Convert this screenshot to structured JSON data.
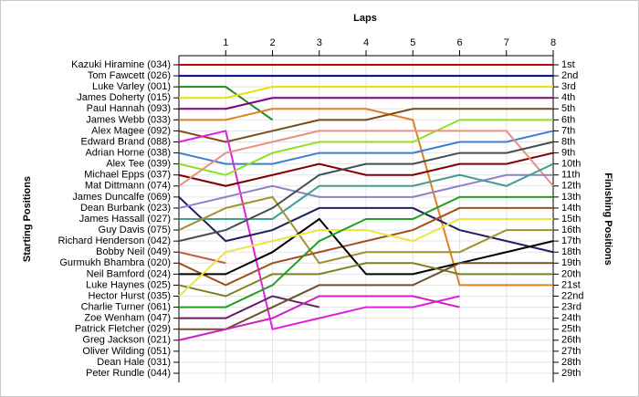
{
  "chart_data": {
    "type": "lap",
    "title": "Laps",
    "ylabel": "Starting Positions",
    "y2label": "Finishing Positions",
    "x": [
      0,
      1,
      2,
      3,
      4,
      5,
      6,
      7,
      8
    ],
    "xlim": [
      0,
      8
    ],
    "xticks": [
      1,
      2,
      3,
      4,
      5,
      6,
      7,
      8
    ],
    "ylim": [
      1,
      29
    ],
    "yticks": [
      {
        "value": 1,
        "label": "1st"
      },
      {
        "value": 2,
        "label": "2nd"
      },
      {
        "value": 3,
        "label": "3rd"
      },
      {
        "value": 4,
        "label": "4th"
      },
      {
        "value": 5,
        "label": "5th"
      },
      {
        "value": 6,
        "label": "6th"
      },
      {
        "value": 7,
        "label": "7th"
      },
      {
        "value": 8,
        "label": "8th"
      },
      {
        "value": 9,
        "label": "9th"
      },
      {
        "value": 10,
        "label": "10th"
      },
      {
        "value": 11,
        "label": "11th"
      },
      {
        "value": 12,
        "label": "12th"
      },
      {
        "value": 13,
        "label": "13th"
      },
      {
        "value": 14,
        "label": "14th"
      },
      {
        "value": 15,
        "label": "15th"
      },
      {
        "value": 16,
        "label": "16th"
      },
      {
        "value": 17,
        "label": "17th"
      },
      {
        "value": 18,
        "label": "18th"
      },
      {
        "value": 19,
        "label": "19th"
      },
      {
        "value": 20,
        "label": "20th"
      },
      {
        "value": 21,
        "label": "21st"
      },
      {
        "value": 22,
        "label": "22nd"
      },
      {
        "value": 23,
        "label": "23rd"
      },
      {
        "value": 24,
        "label": "24th"
      },
      {
        "value": 25,
        "label": "25th"
      },
      {
        "value": 26,
        "label": "26th"
      },
      {
        "value": 27,
        "label": "27th"
      },
      {
        "value": 28,
        "label": "28th"
      },
      {
        "value": 29,
        "label": "29th"
      }
    ],
    "grid": true,
    "series": [
      {
        "name": "Kazuki Hiramine (034)",
        "color": "#cc0000",
        "values": [
          1,
          1,
          1,
          1,
          1,
          1,
          1,
          1,
          1
        ]
      },
      {
        "name": "Tom Fawcett (026)",
        "color": "#000080",
        "values": [
          2,
          2,
          2,
          2,
          2,
          2,
          2,
          2,
          2
        ]
      },
      {
        "name": "Luke Varley (001)",
        "color": "#208a20",
        "values": [
          3,
          3,
          6,
          null,
          null,
          null,
          null,
          null,
          null
        ]
      },
      {
        "name": "James Doherty (015)",
        "color": "#e8e000",
        "values": [
          4,
          4,
          3,
          3,
          3,
          3,
          3,
          3,
          3
        ]
      },
      {
        "name": "Paul Hannah (093)",
        "color": "#800080",
        "values": [
          5,
          5,
          4,
          4,
          4,
          4,
          4,
          4,
          4
        ]
      },
      {
        "name": "James Webb (033)",
        "color": "#e08020",
        "values": [
          6,
          6,
          5,
          5,
          5,
          6,
          21,
          21,
          21
        ]
      },
      {
        "name": "Alex Magee (092)",
        "color": "#7a4a1a",
        "values": [
          7,
          8,
          7,
          6,
          6,
          5,
          5,
          5,
          5
        ]
      },
      {
        "name": "Edward Brand (088)",
        "color": "#e020e0",
        "values": [
          8,
          7,
          25,
          24,
          23,
          23,
          22,
          null,
          null
        ]
      },
      {
        "name": "Adrian Horne (038)",
        "color": "#3a7fd0",
        "values": [
          9,
          10,
          10,
          9,
          9,
          9,
          8,
          8,
          7
        ]
      },
      {
        "name": "Alex Tee (039)",
        "color": "#90e020",
        "values": [
          10,
          11,
          9,
          8,
          8,
          8,
          6,
          6,
          6
        ]
      },
      {
        "name": "Michael Epps (037)",
        "color": "#800000",
        "values": [
          11,
          12,
          11,
          10,
          11,
          11,
          10,
          10,
          9
        ]
      },
      {
        "name": "Mat Dittmann (074)",
        "color": "#e89080",
        "values": [
          12,
          9,
          8,
          7,
          7,
          7,
          7,
          7,
          12
        ]
      },
      {
        "name": "James Duncalfe (069)",
        "color": "#202060",
        "values": [
          13,
          17,
          16,
          14,
          14,
          14,
          16,
          17,
          18
        ]
      },
      {
        "name": "Dean Burbank (023)",
        "color": "#9080c8",
        "values": [
          14,
          13,
          12,
          13,
          13,
          13,
          12,
          11,
          11
        ]
      },
      {
        "name": "James Hassall (027)",
        "color": "#40a090",
        "values": [
          15,
          15,
          15,
          12,
          12,
          12,
          11,
          12,
          10
        ]
      },
      {
        "name": "Guy Davis (075)",
        "color": "#a09030",
        "values": [
          16,
          14,
          13,
          19,
          18,
          18,
          18,
          16,
          16
        ]
      },
      {
        "name": "Richard Henderson (042)",
        "color": "#405050",
        "values": [
          17,
          16,
          14,
          11,
          10,
          10,
          9,
          9,
          8
        ]
      },
      {
        "name": "Bobby Neil (049)",
        "color": "#c06040",
        "values": [
          18,
          19,
          null,
          null,
          null,
          null,
          null,
          null,
          null
        ]
      },
      {
        "name": "Gurmukh Bhambra (020)",
        "color": "#a05020",
        "values": [
          19,
          21,
          19,
          18,
          17,
          16,
          14,
          14,
          14
        ]
      },
      {
        "name": "Neil Bamford (024)",
        "color": "#000000",
        "values": [
          20,
          20,
          18,
          15,
          20,
          20,
          19,
          18,
          17
        ]
      },
      {
        "name": "Luke Haynes (025)",
        "color": "#808020",
        "values": [
          21,
          22,
          20,
          20,
          19,
          19,
          20,
          20,
          20
        ]
      },
      {
        "name": "Hector Hurst (035)",
        "color": "#e8e840",
        "values": [
          22,
          18,
          17,
          16,
          16,
          17,
          15,
          15,
          15
        ]
      },
      {
        "name": "Charlie Turner (061)",
        "color": "#20a020",
        "values": [
          23,
          23,
          21,
          17,
          15,
          15,
          13,
          13,
          13
        ]
      },
      {
        "name": "Zoe Wenham (047)",
        "color": "#602060",
        "values": [
          24,
          24,
          22,
          23,
          null,
          null,
          null,
          null,
          null
        ]
      },
      {
        "name": "Patrick Fletcher (029)",
        "color": "#705030",
        "values": [
          25,
          25,
          23,
          21,
          21,
          21,
          19,
          19,
          19
        ]
      },
      {
        "name": "Greg Jackson (021)",
        "color": "#d020c0",
        "values": [
          26,
          25,
          24,
          22,
          22,
          22,
          23,
          null,
          null
        ]
      },
      {
        "name": "Oliver Wilding (051)",
        "color": "#606060",
        "values": [
          27,
          null,
          null,
          null,
          null,
          null,
          null,
          null,
          null
        ]
      },
      {
        "name": "Dean Hale (031)",
        "color": "#606060",
        "values": [
          28,
          null,
          null,
          null,
          null,
          null,
          null,
          null,
          null
        ]
      },
      {
        "name": "Peter Rundle (044)",
        "color": "#606060",
        "values": [
          29,
          null,
          null,
          null,
          null,
          null,
          null,
          null,
          null
        ]
      }
    ]
  }
}
